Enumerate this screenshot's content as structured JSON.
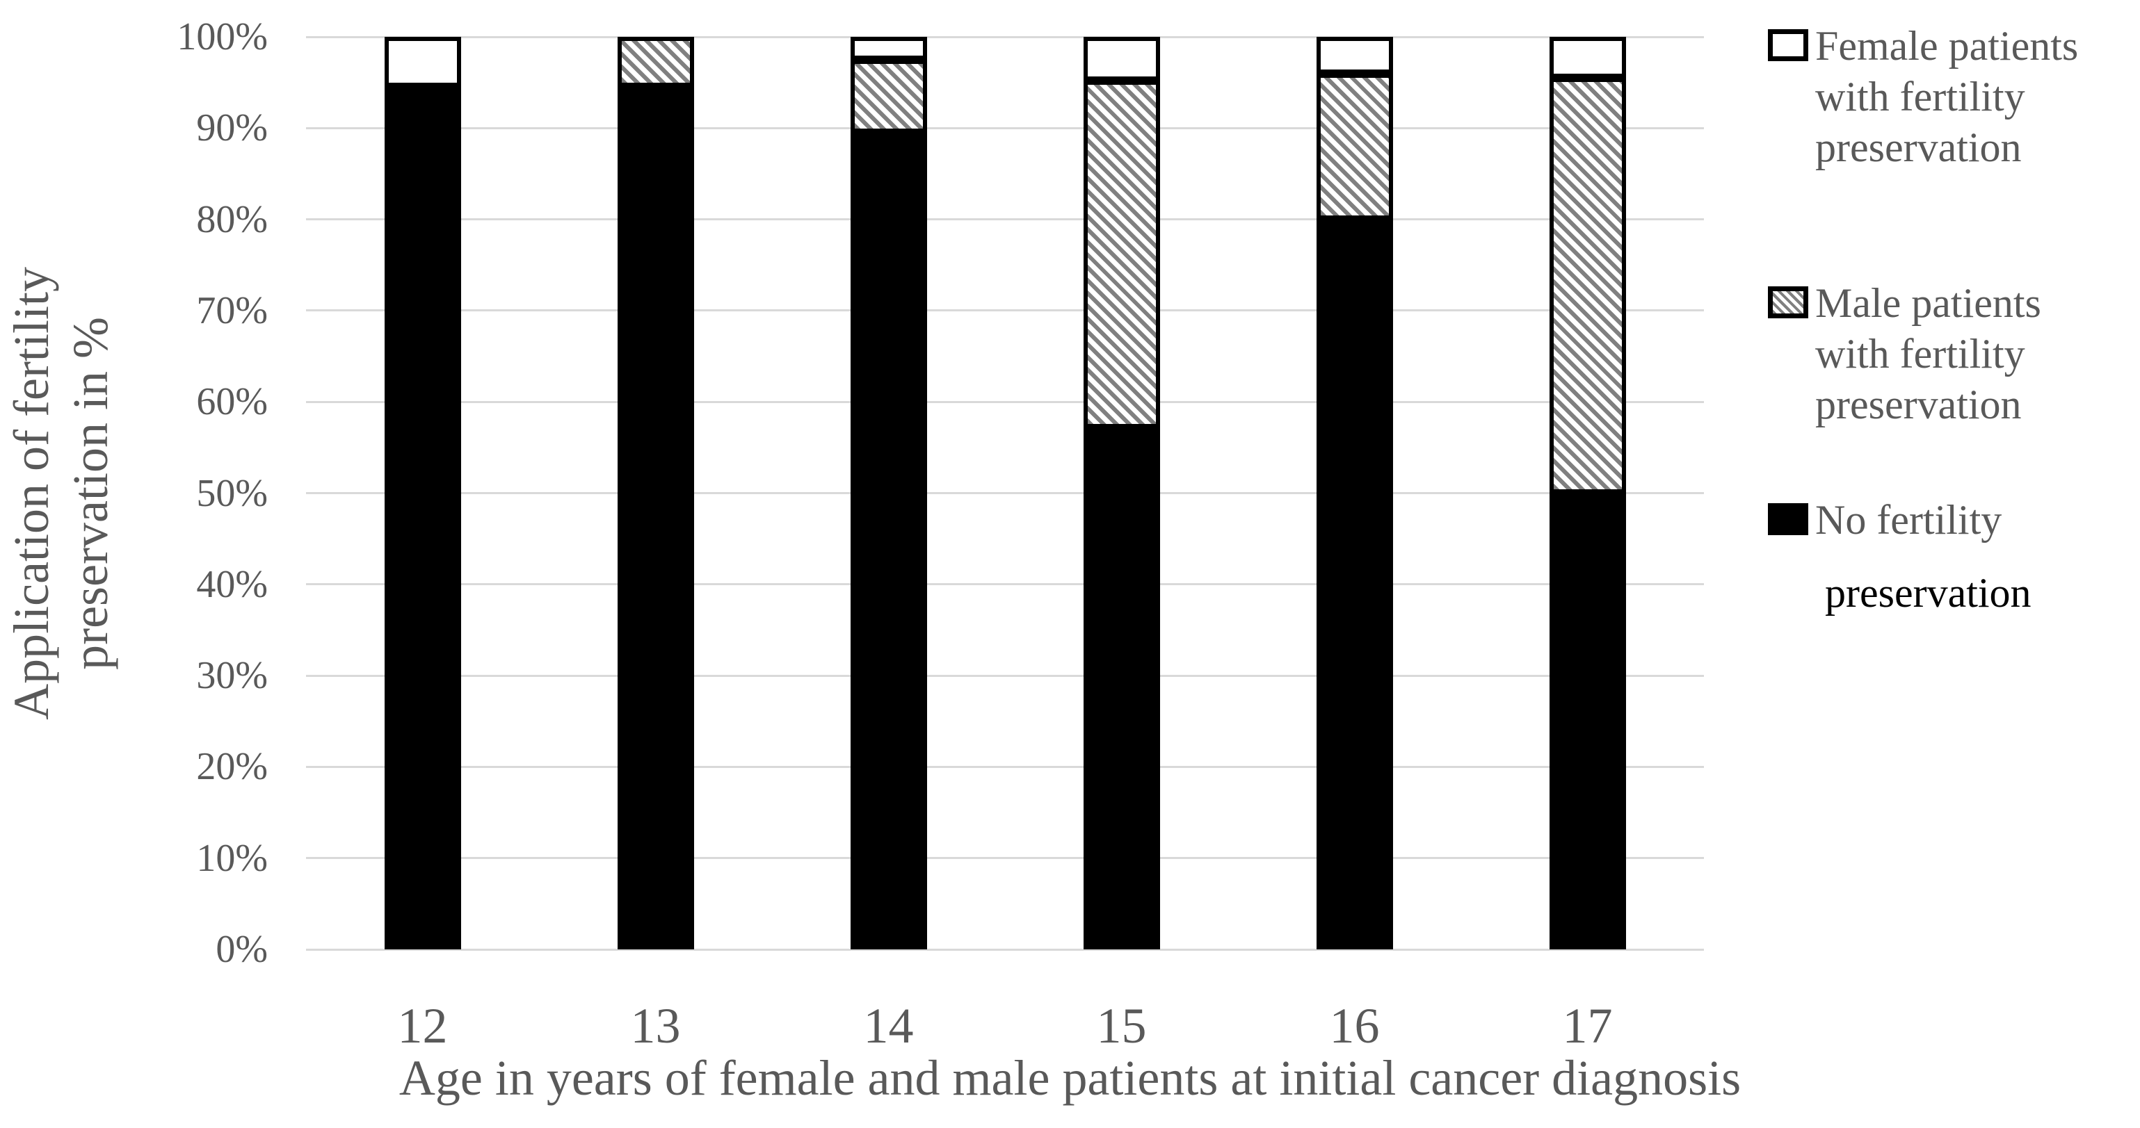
{
  "figure": {
    "y_axis_title_lines": [
      "Application of fertility",
      "preservation in %"
    ],
    "x_axis_title": "Age in years of female and male patients at initial cancer diagnosis"
  },
  "chart_data": {
    "type": "bar",
    "stacked": true,
    "title": "",
    "xlabel": "Age in years of female and male patients at initial cancer diagnosis",
    "ylabel": "Application of fertility preservation in %",
    "categories": [
      "12",
      "13",
      "14",
      "15",
      "16",
      "17"
    ],
    "y_ticks": [
      "0%",
      "10%",
      "20%",
      "30%",
      "40%",
      "50%",
      "60%",
      "70%",
      "80%",
      "90%",
      "100%"
    ],
    "ylim": [
      0,
      100
    ],
    "grid": "horizontal",
    "legend_position": "right",
    "series": [
      {
        "name": "No fertility preservation",
        "pattern": "solid-black",
        "values": [
          94.5,
          94.5,
          89.5,
          57.1,
          80,
          50
        ]
      },
      {
        "name": "Male patients with fertility preservation",
        "pattern": "diagonal-hatch",
        "values": [
          0,
          5.5,
          8,
          38.1,
          16,
          45.5
        ]
      },
      {
        "name": "Female patients with fertility preservation",
        "pattern": "white",
        "values": [
          5.5,
          0,
          2.5,
          4.8,
          4,
          4.5
        ]
      }
    ]
  },
  "legend": {
    "items": [
      {
        "swatch": "white",
        "lines": [
          "Female patients",
          "with fertility",
          "preservation"
        ]
      },
      {
        "swatch": "diagonal-hatch",
        "lines": [
          "Male patients",
          "with fertility",
          "preservation"
        ]
      },
      {
        "swatch": "solid-black",
        "lines": [
          "No fertility",
          "preservation"
        ],
        "black_lines": [
          1
        ]
      }
    ]
  },
  "colors": {
    "text_gray": "#595959",
    "gridline": "#d9d9d9",
    "bar_black": "#000000",
    "hatch_gray": "#808080",
    "background": "#ffffff"
  }
}
